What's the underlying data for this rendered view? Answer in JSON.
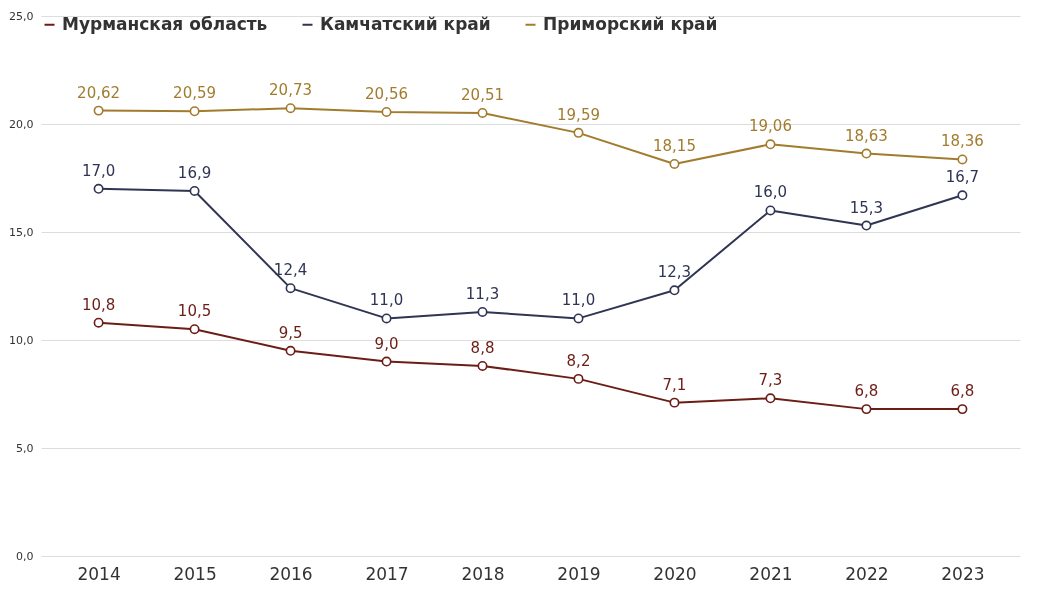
{
  "chart_data": {
    "type": "line",
    "categories": [
      "2014",
      "2015",
      "2016",
      "2017",
      "2018",
      "2019",
      "2020",
      "2021",
      "2022",
      "2023"
    ],
    "series": [
      {
        "name": "Мурманская область",
        "color": "#6b1d16",
        "values": [
          10.8,
          10.5,
          9.5,
          9.0,
          8.8,
          8.2,
          7.1,
          7.3,
          6.8,
          6.8
        ],
        "value_labels": [
          "10,8",
          "10,5",
          "9,5",
          "9,0",
          "8,8",
          "8,2",
          "7,1",
          "7,3",
          "6,8",
          "6,8"
        ]
      },
      {
        "name": "Камчатский край",
        "color": "#2f3553",
        "values": [
          17.0,
          16.9,
          12.4,
          11.0,
          11.3,
          11.0,
          12.3,
          16.0,
          15.3,
          16.7
        ],
        "value_labels": [
          "17,0",
          "16,9",
          "12,4",
          "11,0",
          "11,3",
          "11,0",
          "12,3",
          "16,0",
          "15,3",
          "16,7"
        ]
      },
      {
        "name": "Приморский край",
        "color": "#a27c2e",
        "values": [
          20.62,
          20.59,
          20.73,
          20.56,
          20.51,
          19.59,
          18.15,
          19.06,
          18.63,
          18.36
        ],
        "value_labels": [
          "20,62",
          "20,59",
          "20,73",
          "20,56",
          "20,51",
          "19,59",
          "18,15",
          "19,06",
          "18,63",
          "18,36"
        ]
      }
    ],
    "ylim": [
      0,
      25
    ],
    "yticks": [
      {
        "value": 0,
        "label": "0,0"
      },
      {
        "value": 5,
        "label": "5,0"
      },
      {
        "value": 10,
        "label": "10,0"
      },
      {
        "value": 15,
        "label": "15,0"
      },
      {
        "value": 20,
        "label": "20,0"
      },
      {
        "value": 25,
        "label": "25,0"
      }
    ],
    "grid": "y",
    "legend": "top left",
    "marker": "circle",
    "line_style": "solid"
  }
}
